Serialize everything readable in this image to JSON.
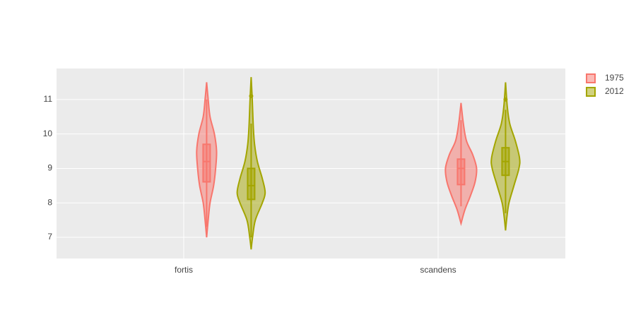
{
  "chart_data": {
    "type": "violin",
    "categories": [
      "fortis",
      "scandens"
    ],
    "ylim": [
      6.385,
      11.9
    ],
    "yticks": [
      7,
      8,
      9,
      10,
      11
    ],
    "grid": true,
    "legend": "top-right",
    "series": [
      {
        "name": "1975",
        "color": "#f8766d",
        "values": [
          {
            "min": 7.3,
            "q1": 8.61,
            "median": 9.2,
            "q3": 9.7,
            "max": 11.0,
            "outliers": [],
            "density": {
              "y": [
                7.0,
                7.5,
                8.0,
                8.5,
                9.0,
                9.5,
                10.0,
                10.5,
                11.0,
                11.5
              ],
              "width": [
                0,
                0.1,
                0.22,
                0.45,
                0.58,
                0.64,
                0.5,
                0.22,
                0.1,
                0
              ]
            }
          },
          {
            "min": 7.9,
            "q1": 8.53,
            "median": 9.0,
            "q3": 9.27,
            "max": 10.4,
            "outliers": [],
            "density": {
              "y": [
                7.4,
                7.8,
                8.2,
                8.6,
                9.0,
                9.4,
                9.8,
                10.3,
                10.9
              ],
              "width": [
                0,
                0.25,
                0.6,
                0.9,
                1.0,
                0.75,
                0.35,
                0.15,
                0
              ]
            }
          }
        ]
      },
      {
        "name": "2012",
        "color": "#a3a500",
        "values": [
          {
            "min": 7.0,
            "q1": 8.1,
            "median": 8.5,
            "q3": 9.0,
            "max": 10.3,
            "outliers": [
              11.1
            ],
            "density": {
              "y": [
                6.65,
                7.0,
                7.5,
                8.0,
                8.3,
                8.7,
                9.2,
                9.7,
                10.2,
                11.0,
                11.65
              ],
              "width": [
                0,
                0.09,
                0.27,
                0.72,
                0.9,
                0.72,
                0.4,
                0.22,
                0.14,
                0.07,
                0
              ]
            }
          },
          {
            "min": 7.7,
            "q1": 8.8,
            "median": 9.2,
            "q3": 9.6,
            "max": 10.7,
            "outliers": [
              11.0
            ],
            "density": {
              "y": [
                7.2,
                7.6,
                8.0,
                8.5,
                9.0,
                9.3,
                9.8,
                10.3,
                10.8,
                11.5
              ],
              "width": [
                0,
                0.09,
                0.22,
                0.54,
                0.86,
                0.9,
                0.63,
                0.27,
                0.11,
                0
              ]
            }
          }
        ]
      }
    ]
  }
}
